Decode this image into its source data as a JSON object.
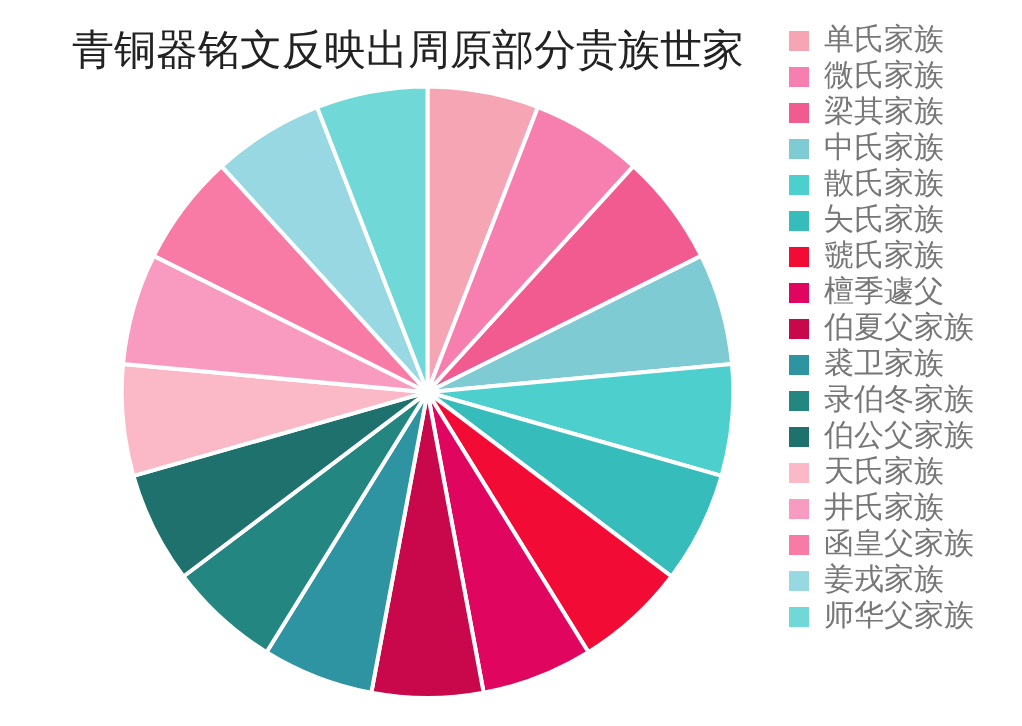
{
  "chart_data": {
    "type": "pie",
    "title": "青铜器铭文反映出周原部分贵族世家",
    "categories": [
      "单氏家族",
      "微氏家族",
      "梁其家族",
      "中氏家族",
      "散氏家族",
      "夨氏家族",
      "虢氏家族",
      "檀季遽父",
      "伯夏父家族",
      "裘卫家族",
      "录伯冬家族",
      "伯公父家族",
      "天氏家族",
      "井氏家族",
      "函皇父家族",
      "姜戎家族",
      "师华父家族"
    ],
    "values": [
      5.88,
      5.88,
      5.88,
      5.88,
      5.88,
      5.88,
      5.88,
      5.88,
      5.88,
      5.88,
      5.88,
      5.88,
      5.88,
      5.88,
      5.88,
      5.88,
      5.88
    ],
    "colors": [
      "#f6a5b5",
      "#f77fb0",
      "#f25b90",
      "#7ecbd3",
      "#4dcfcd",
      "#36bcbb",
      "#f20b34",
      "#e0065f",
      "#c8084a",
      "#2e94a2",
      "#238680",
      "#1f716d",
      "#fbb9c8",
      "#f99ac0",
      "#f87ba6",
      "#98d8e2",
      "#71d8d8"
    ],
    "legend": "right"
  }
}
